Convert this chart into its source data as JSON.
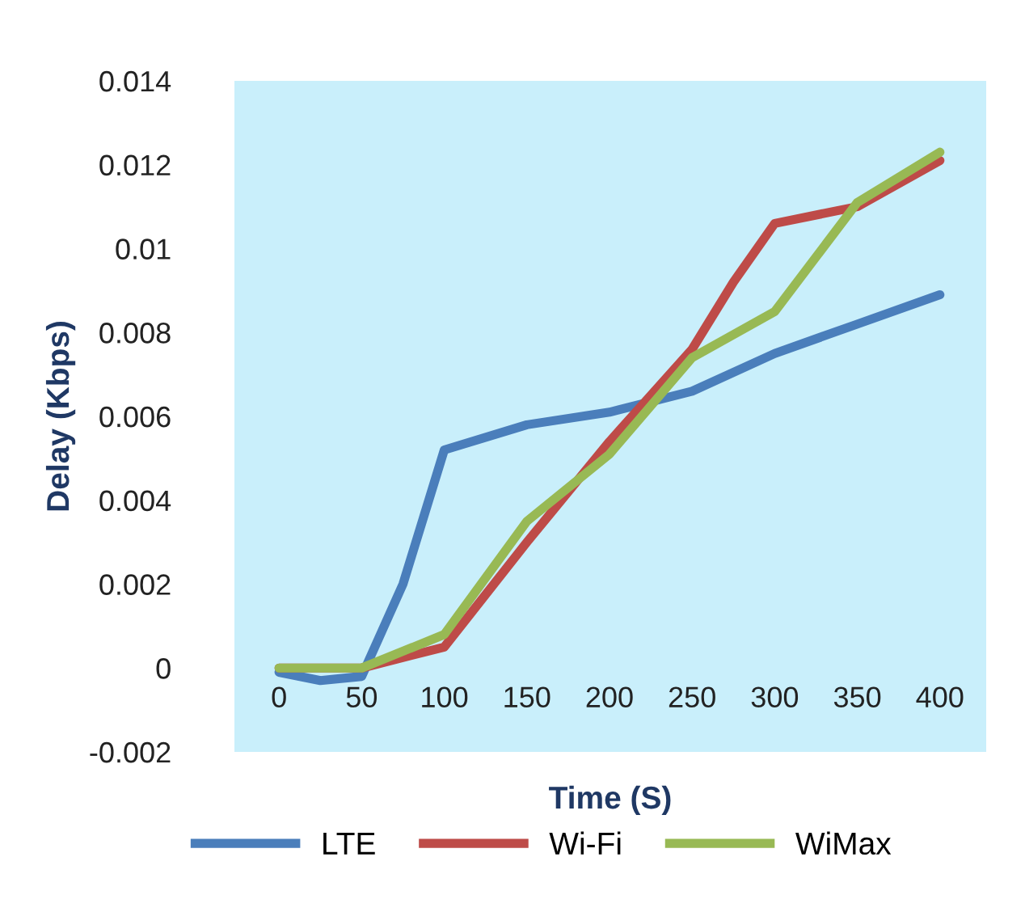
{
  "chart_data": {
    "type": "line",
    "xlabel": "Time (S)",
    "ylabel": "Delay (Kbps)",
    "xlim": [
      -27,
      428
    ],
    "ylim": [
      -0.002,
      0.014
    ],
    "xticks": [
      0,
      50,
      100,
      150,
      200,
      250,
      300,
      350,
      400
    ],
    "yticks": [
      {
        "value": -0.002,
        "label": "-0.002"
      },
      {
        "value": 0,
        "label": "0"
      },
      {
        "value": 0.002,
        "label": "0.002"
      },
      {
        "value": 0.004,
        "label": "0.004"
      },
      {
        "value": 0.006,
        "label": "0.006"
      },
      {
        "value": 0.008,
        "label": "0.008"
      },
      {
        "value": 0.01,
        "label": "0.01"
      },
      {
        "value": 0.012,
        "label": "0.012"
      },
      {
        "value": 0.014,
        "label": "0.014"
      }
    ],
    "grid": false,
    "legend": "bottom",
    "marker": "none",
    "line_style": "solid",
    "series": [
      {
        "name": "LTE",
        "color": "#4a7ebb",
        "x": [
          0,
          25,
          50,
          75,
          100,
          150,
          200,
          250,
          300,
          350,
          400
        ],
        "values": [
          -0.0001,
          -0.0003,
          -0.0002,
          0.002,
          0.0052,
          0.0058,
          0.0061,
          0.0066,
          0.0075,
          0.0082,
          0.0089
        ]
      },
      {
        "name": "Wi-Fi",
        "color": "#be4b48",
        "x": [
          0,
          50,
          100,
          150,
          200,
          250,
          275,
          300,
          350,
          400
        ],
        "values": [
          0,
          0,
          0.0005,
          0.003,
          0.0054,
          0.0076,
          0.0092,
          0.0106,
          0.011,
          0.0121
        ]
      },
      {
        "name": "WiMax",
        "color": "#98b954",
        "x": [
          0,
          50,
          100,
          150,
          200,
          250,
          300,
          350,
          400
        ],
        "values": [
          0,
          0,
          0.0008,
          0.0035,
          0.0051,
          0.0074,
          0.0085,
          0.0111,
          0.0123
        ]
      }
    ]
  }
}
